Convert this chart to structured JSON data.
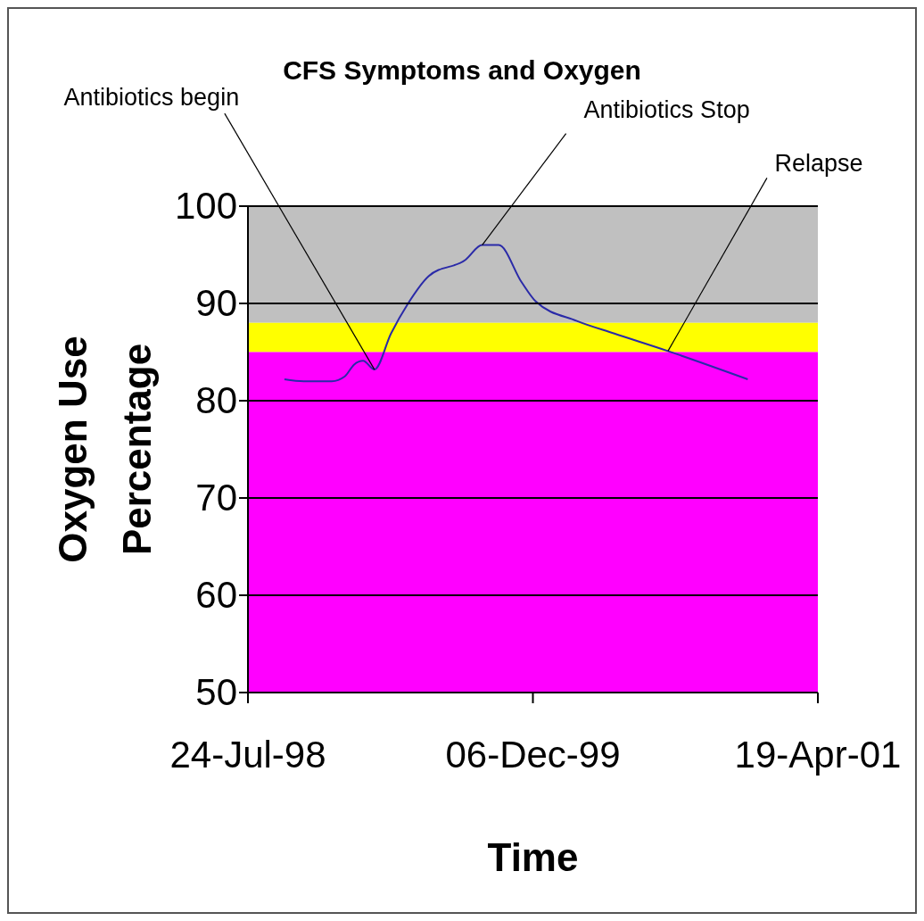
{
  "chart_data": {
    "type": "line",
    "title": "CFS Symptoms and Oxygen",
    "xlabel": "Time",
    "ylabel": "Oxygen Use Percentage",
    "x": [
      "1998-09-26",
      "1998-10-30",
      "1998-12-18",
      "1999-01-10",
      "1999-01-26",
      "1999-02-11",
      "1999-03-03",
      "1999-04-01",
      "1999-05-01",
      "1999-06-06",
      "1999-08-10",
      "1999-09-08",
      "1999-10-07",
      "1999-11-16",
      "1999-12-11",
      "2000-02-21",
      "2000-04-27",
      "2000-07-30",
      "2000-12-17"
    ],
    "series": [
      {
        "color": "#2a2aa8",
        "values": [
          82.2,
          82.0,
          82.0,
          82.5,
          83.7,
          84.1,
          83.2,
          86.9,
          90.0,
          92.8,
          94.5,
          96.0,
          96.0,
          92.2,
          90.2,
          88.2,
          86.9,
          85.1,
          82.2
        ]
      }
    ],
    "xlim": [
      "1998-07-24",
      "2001-04-19"
    ],
    "xticks": [
      {
        "value": "1998-07-24",
        "label": "24-Jul-98"
      },
      {
        "value": "1999-12-06",
        "label": "06-Dec-99"
      },
      {
        "value": "2001-04-19",
        "label": "19-Apr-01"
      }
    ],
    "ylim": [
      50,
      100
    ],
    "yticks": [
      50,
      60,
      70,
      80,
      90,
      100
    ],
    "grid": "y",
    "marker": "none",
    "line_style": "solid",
    "bands": [
      {
        "axis": "y",
        "from": 88,
        "to": 100,
        "color": "#c0c0c0"
      },
      {
        "axis": "y",
        "from": 85,
        "to": 88,
        "color": "#ffff00"
      },
      {
        "axis": "y",
        "from": 50,
        "to": 85,
        "color": "#ff00ff"
      }
    ],
    "annotations": [
      {
        "text": "Antibiotics begin",
        "x": "1999-03-03",
        "y": 83.2
      },
      {
        "text": "Antibiotics Stop",
        "x": "1999-09-08",
        "y": 96.0
      },
      {
        "text": "Relapse",
        "x": "2000-07-30",
        "y": 85.1
      }
    ]
  }
}
